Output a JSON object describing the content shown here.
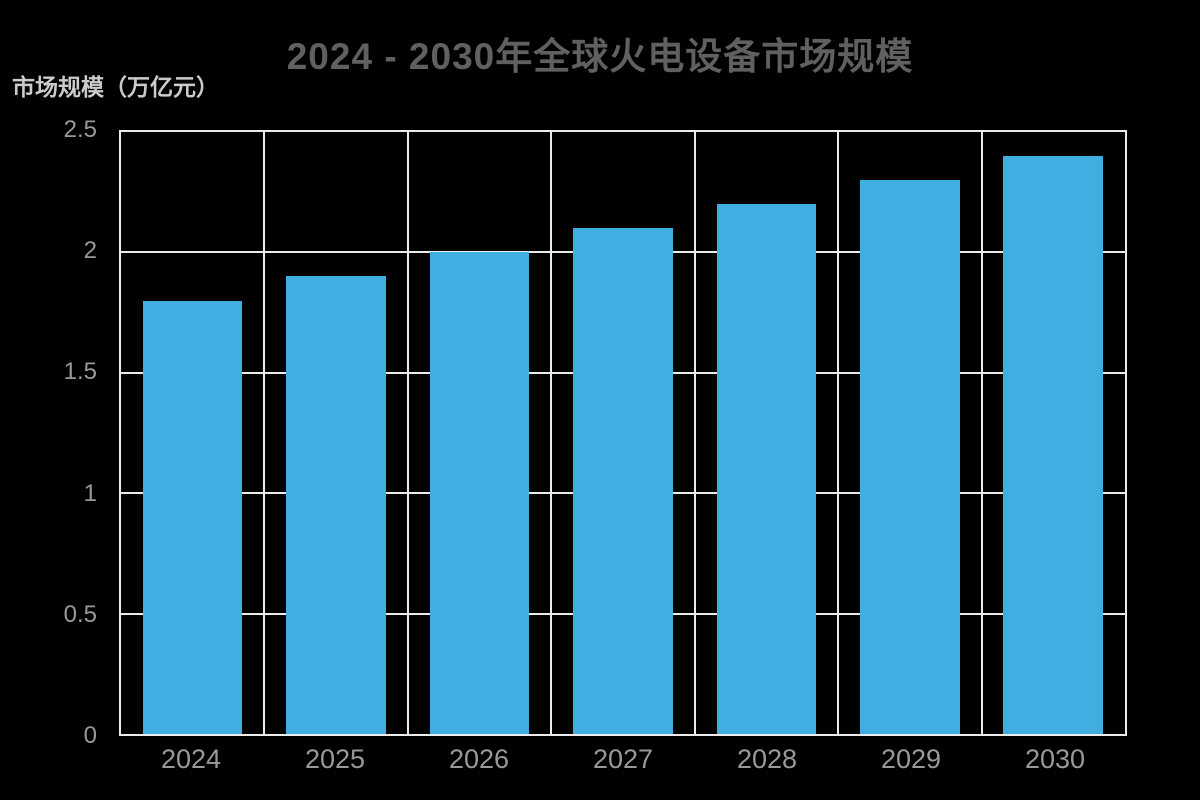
{
  "page": {
    "background_color": "#000000"
  },
  "colors": {
    "bar": "#41AEE2",
    "grid": "#EBEBEB",
    "title_text": "#606060",
    "tick_text": "#999999",
    "axis_label_text": "#CBCBCB",
    "background": "#000000"
  },
  "chart_data": {
    "type": "bar",
    "title": "2024 - 2030年全球火电设备市场规模",
    "ylabel": "市场规模（万亿元）",
    "xlabel": "",
    "categories": [
      "2024",
      "2025",
      "2026",
      "2027",
      "2028",
      "2029",
      "2030"
    ],
    "values": [
      1.8,
      1.9,
      2.0,
      2.1,
      2.2,
      2.3,
      2.4
    ],
    "ylim": [
      0,
      2.5
    ],
    "yticks": [
      0,
      0.5,
      1,
      1.5,
      2,
      2.5
    ],
    "ytick_labels": [
      "0",
      "0.5",
      "1",
      "1.5",
      "2",
      "2.5"
    ],
    "grid": true,
    "plot_border": true,
    "legend_position": "none",
    "bar_color": "#41AEE2"
  }
}
